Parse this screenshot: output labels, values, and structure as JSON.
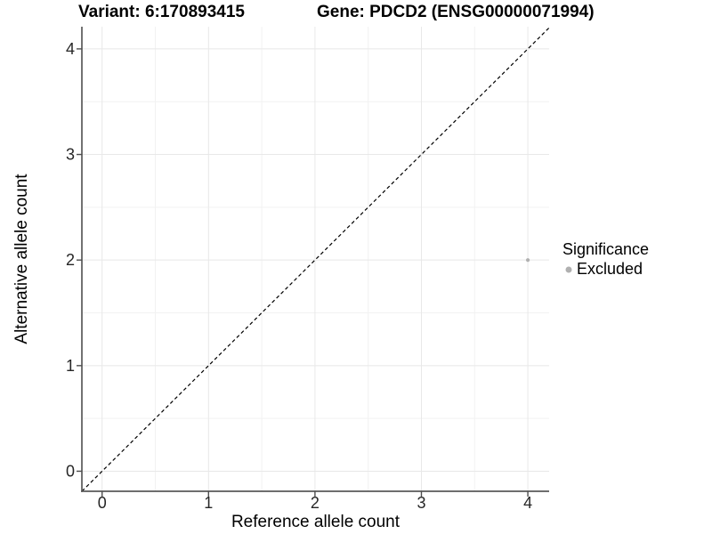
{
  "titles": {
    "variant": "Variant: 6:170893415",
    "gene": "Gene: PDCD2 (ENSG00000071994)"
  },
  "axes": {
    "x_label": "Reference allele count",
    "y_label": "Alternative allele count"
  },
  "legend": {
    "title": "Significance",
    "items": [
      {
        "label": "Excluded",
        "color": "#b0b0b0"
      }
    ]
  },
  "colors": {
    "background": "#ffffff",
    "grid_major": "#e8e8e8",
    "grid_minor": "#f2f2f2",
    "axis_line": "#595959",
    "tick_mark": "#4d4d4d",
    "tick_label": "#262626",
    "reference_line": "#000000",
    "point": "#b0b0b0"
  },
  "chart_data": {
    "type": "scatter",
    "title_left": "Variant: 6:170893415",
    "title_right": "Gene: PDCD2 (ENSG00000071994)",
    "xlabel": "Reference allele count",
    "ylabel": "Alternative allele count",
    "xlim": [
      -0.19,
      4.2
    ],
    "ylim": [
      -0.19,
      4.21
    ],
    "x_ticks": [
      0,
      1,
      2,
      3,
      4
    ],
    "y_ticks": [
      0,
      1,
      2,
      3,
      4
    ],
    "x_minor_gridlines": [
      0.5,
      1.5,
      2.5,
      3.5
    ],
    "y_minor_gridlines": [
      0.5,
      1.5,
      2.5,
      3.5
    ],
    "grid": "major and minor gridlines, very light gray on white",
    "legend_position": "right-center",
    "reference_line": {
      "kind": "identity y=x",
      "style": "dashed",
      "color": "#000000"
    },
    "series": [
      {
        "name": "Excluded",
        "marker": "circle",
        "color": "#b0b0b0",
        "points": [
          [
            4,
            2
          ]
        ]
      }
    ]
  }
}
